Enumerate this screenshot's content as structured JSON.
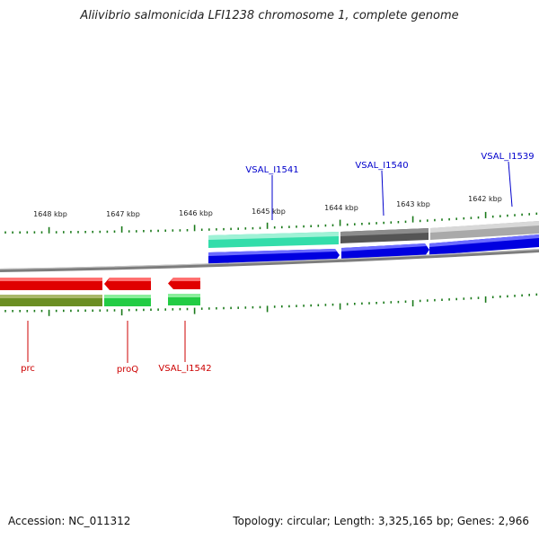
{
  "title": "Aliivibrio salmonicida LFI1238 chromosome 1, complete genome",
  "footer": {
    "accession": "Accession: NC_011312",
    "summary": "Topology: circular; Length: 3,325,165 bp; Genes: 2,966"
  },
  "colors": {
    "forward_gene": "#0000e0",
    "reverse_gene": "#e00000",
    "forward_label": "#0000cc",
    "reverse_label": "#cc0000",
    "cds_green": "#22cc44",
    "cds_teal": "#33ddaa",
    "cds_olive": "#6b8e23",
    "cds_gray": "#777777",
    "backbone": "#8a8a8a",
    "ticks": "#1a7a1a"
  },
  "scale_labels": [
    "1648 kbp",
    "1647 kbp",
    "1646 kbp",
    "1645 kbp",
    "1644 kbp",
    "1643 kbp",
    "1642 kbp"
  ],
  "forward_genes": [
    {
      "label": "VSAL_I1541"
    },
    {
      "label": "VSAL_I1540"
    },
    {
      "label": "VSAL_I1539"
    }
  ],
  "reverse_genes": [
    {
      "label": "prc"
    },
    {
      "label": "proQ"
    },
    {
      "label": "VSAL_I1542"
    }
  ]
}
